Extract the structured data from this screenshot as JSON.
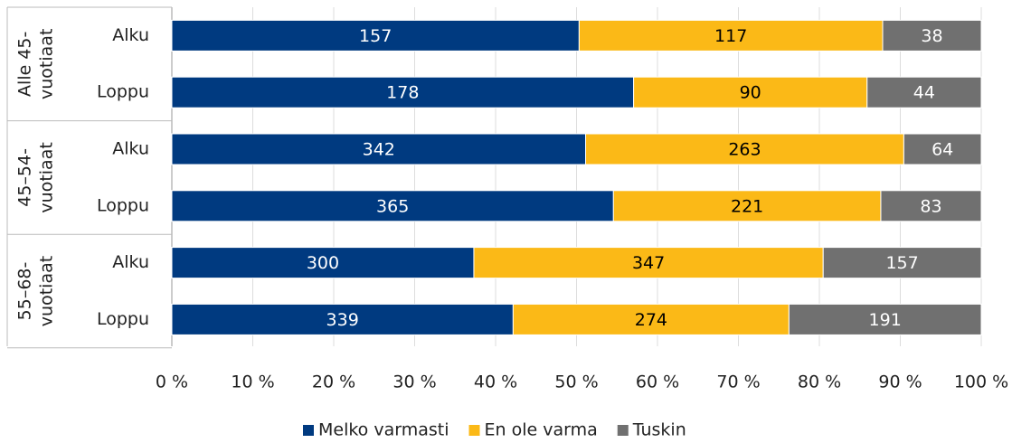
{
  "chart_data": {
    "type": "stacked_bar_100",
    "groups": [
      {
        "name_lines": [
          "Alle 45-",
          "vuotiaat"
        ]
      },
      {
        "name_lines": [
          "45–54-",
          "vuotiaat"
        ]
      },
      {
        "name_lines": [
          "55–68-",
          "vuotiaat"
        ]
      }
    ],
    "categories": [
      "Alku",
      "Loppu",
      "Alku",
      "Loppu",
      "Alku",
      "Loppu"
    ],
    "series": [
      {
        "name": "Melko varmasti",
        "color": "#003a80",
        "label_color": "#ffffff",
        "values": [
          157,
          178,
          342,
          365,
          300,
          339
        ]
      },
      {
        "name": "En ole varma",
        "color": "#fbb917",
        "label_color": "#000000",
        "values": [
          117,
          90,
          263,
          221,
          347,
          274
        ]
      },
      {
        "name": "Tuskin",
        "color": "#707070",
        "label_color": "#ffffff",
        "values": [
          38,
          44,
          64,
          83,
          157,
          191
        ]
      }
    ],
    "xlim": [
      0,
      100
    ],
    "xticks": [
      {
        "value": 0,
        "label": "0 %"
      },
      {
        "value": 10,
        "label": "10 %"
      },
      {
        "value": 20,
        "label": "20 %"
      },
      {
        "value": 30,
        "label": "30 %"
      },
      {
        "value": 40,
        "label": "40 %"
      },
      {
        "value": 50,
        "label": "50 %"
      },
      {
        "value": 60,
        "label": "60 %"
      },
      {
        "value": 70,
        "label": "70 %"
      },
      {
        "value": 80,
        "label": "80 %"
      },
      {
        "value": 90,
        "label": "90 %"
      },
      {
        "value": 100,
        "label": "100 %"
      }
    ],
    "grid": true,
    "legend": "bottom"
  }
}
